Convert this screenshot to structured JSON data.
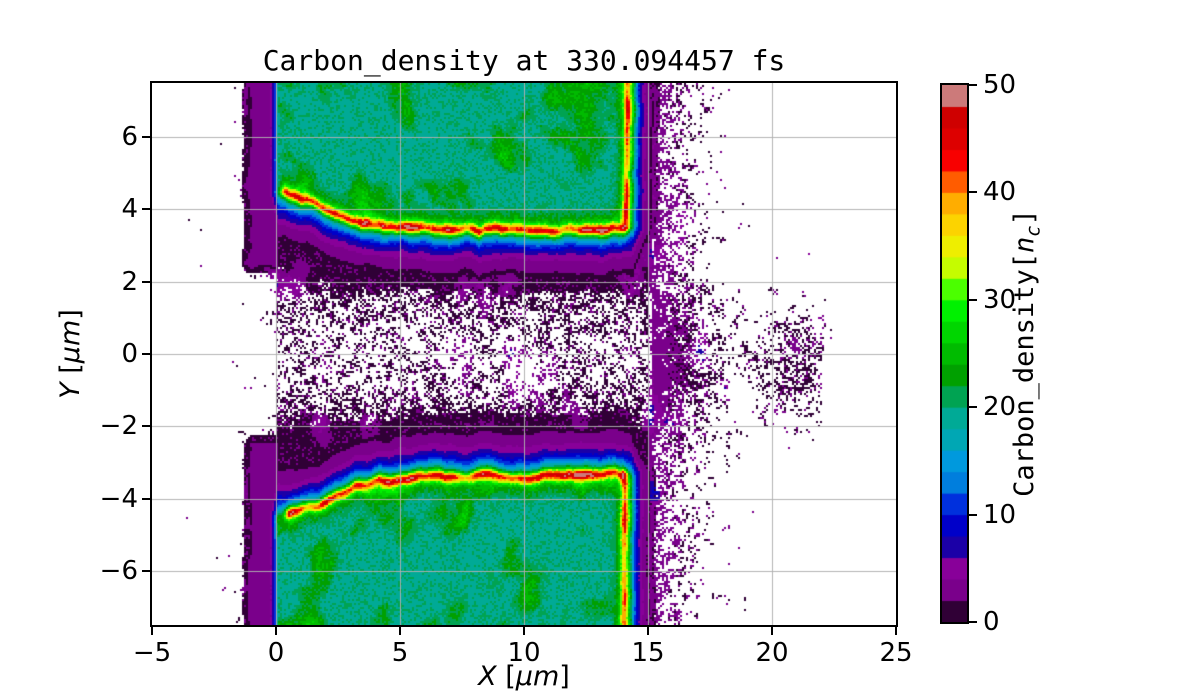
{
  "figure": {
    "background": "#ffffff"
  },
  "chart_data": {
    "type": "heatmap",
    "title": "Carbon_density at 330.094457 fs",
    "time_fs": 330.094457,
    "xlabel": "X [μm]",
    "ylabel": "Y [μm]",
    "xlabel_parts": {
      "var": "X",
      "open": " [",
      "unit": "μm",
      "close": "]"
    },
    "ylabel_parts": {
      "var": "Y",
      "open": " [",
      "unit": "μm",
      "close": "]"
    },
    "xlim": [
      -5,
      25
    ],
    "ylim": [
      -7.5,
      7.5
    ],
    "xticks": [
      -5,
      0,
      5,
      10,
      15,
      20,
      25
    ],
    "xtick_labels": [
      "−5",
      "0",
      "5",
      "10",
      "15",
      "20",
      "25"
    ],
    "yticks": [
      6,
      4,
      2,
      0,
      -2,
      -4,
      -6
    ],
    "ytick_labels": [
      "6",
      "4",
      "2",
      "0",
      "−2",
      "−4",
      "−6"
    ],
    "grid": true,
    "grid_color": "#b0b0b0",
    "grid_xlines": [
      0,
      5,
      10,
      15,
      20
    ],
    "grid_ylines": [
      -6,
      -4,
      -2,
      0,
      2,
      4,
      6
    ],
    "colormap": "nipy_spectral",
    "levels": {
      "min": 0,
      "max": 50,
      "step": 2,
      "n_bands": 25
    },
    "colorbar": {
      "label": "Carbon_density[nc]",
      "label_parts": {
        "prefix": "Carbon_density[",
        "var": "n",
        "sub": "c",
        "suffix": "]"
      },
      "vmin": 0,
      "vmax": 50,
      "ticks": [
        0,
        10,
        20,
        30,
        40,
        50
      ],
      "tick_labels": [
        "0",
        "10",
        "20",
        "30",
        "40",
        "50"
      ]
    },
    "features": {
      "target_slabs": [
        {
          "id": "top",
          "x_range": [
            0,
            15
          ],
          "y_range": [
            3.4,
            7.5
          ],
          "interior_density_nc": 20,
          "front_curve": [
            [
              0.35,
              4.45
            ],
            [
              0.9,
              4.3
            ],
            [
              1.6,
              4.15
            ],
            [
              2.3,
              3.9
            ],
            [
              3.0,
              3.7
            ],
            [
              4.0,
              3.55
            ],
            [
              5.0,
              3.5
            ],
            [
              6.0,
              3.52
            ],
            [
              7.0,
              3.45
            ],
            [
              8.0,
              3.42
            ],
            [
              9.0,
              3.48
            ],
            [
              10.0,
              3.45
            ],
            [
              11.0,
              3.4
            ],
            [
              12.0,
              3.45
            ],
            [
              13.0,
              3.4
            ],
            [
              13.9,
              3.45
            ]
          ],
          "right_edge_x": 14.15,
          "front_peak_density_nc": 50
        },
        {
          "id": "bottom",
          "x_range": [
            0,
            15
          ],
          "y_range": [
            -7.5,
            -3.3
          ],
          "interior_density_nc": 20,
          "front_curve": [
            [
              0.5,
              -4.4
            ],
            [
              1.0,
              -4.3
            ],
            [
              1.7,
              -4.2
            ],
            [
              2.4,
              -3.95
            ],
            [
              3.2,
              -3.7
            ],
            [
              4.2,
              -3.52
            ],
            [
              5.5,
              -3.42
            ],
            [
              7.0,
              -3.38
            ],
            [
              8.5,
              -3.36
            ],
            [
              10.0,
              -3.42
            ],
            [
              11.5,
              -3.36
            ],
            [
              12.8,
              -3.3
            ],
            [
              13.95,
              -3.32
            ]
          ],
          "right_edge_x": 14.05,
          "front_peak_density_nc": 50
        }
      ],
      "gap": {
        "x_range": [
          0,
          15
        ],
        "y_range": [
          -3.3,
          3.4
        ],
        "density_nc": [
          0,
          7
        ],
        "description": "dark low-density channel with purple patches and white speckle holes"
      },
      "ambient_noise": {
        "description": "sparse scattered macro-particle speckle outside target; denser adjacent to target edges and in a band near y≈0 out to x≈22",
        "left_band": {
          "x_range": [
            -1.5,
            0
          ],
          "abs_y_range": [
            2.2,
            7.5
          ],
          "density_nc": [
            2,
            6
          ]
        },
        "dense_blob": {
          "x": 21.2,
          "y": -0.3
        },
        "void_region": {
          "x_range": [
            22,
            25
          ],
          "y_range": [
            -2.7,
            0.1
          ]
        }
      }
    }
  }
}
